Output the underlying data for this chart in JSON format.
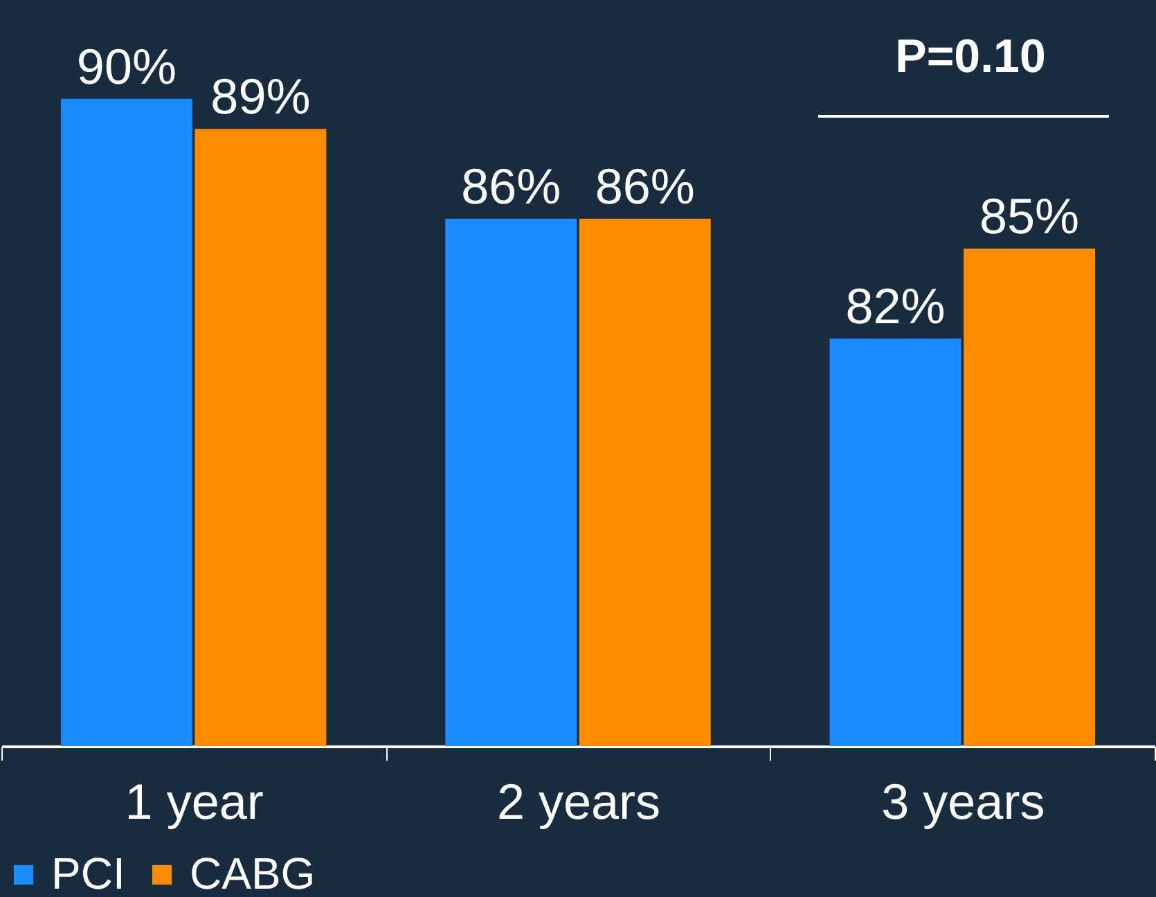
{
  "chart_data": {
    "type": "bar",
    "categories": [
      "1 year",
      "2 years",
      "3 years"
    ],
    "series": [
      {
        "name": "PCI",
        "color": "#1a8cff",
        "values": [
          90,
          86,
          82
        ],
        "value_labels": [
          "90%",
          "86%",
          "82%"
        ]
      },
      {
        "name": "CABG",
        "color": "#ff8c00",
        "values": [
          89,
          86,
          85
        ],
        "value_labels": [
          "89%",
          "86%",
          "85%"
        ]
      }
    ],
    "ylim": [
      68.4,
      93.3
    ],
    "legend": "bottom",
    "grid": false,
    "annotations": [
      "P=0.10"
    ]
  }
}
